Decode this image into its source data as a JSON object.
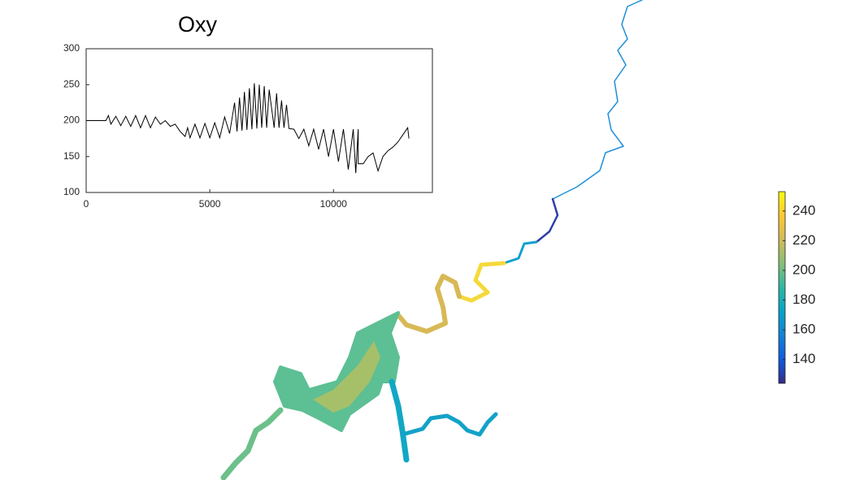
{
  "chart_data": [
    {
      "type": "line",
      "title": "Oxy",
      "x": [
        0,
        800,
        900,
        1000,
        1200,
        1400,
        1600,
        1800,
        2000,
        2200,
        2400,
        2600,
        2800,
        3000,
        3200,
        3400,
        3600,
        3800,
        4000,
        4100,
        4200,
        4400,
        4600,
        4800,
        5000,
        5200,
        5400,
        5600,
        5800,
        6000,
        6100,
        6200,
        6300,
        6400,
        6500,
        6600,
        6700,
        6800,
        6900,
        7000,
        7100,
        7200,
        7300,
        7400,
        7600,
        7700,
        7800,
        7900,
        8000,
        8100,
        8200,
        8400,
        8600,
        8800,
        9000,
        9200,
        9400,
        9600,
        9800,
        10000,
        10200,
        10400,
        10600,
        10800,
        10900,
        11000,
        11000,
        11200,
        11400,
        11600,
        11800,
        12000,
        12200,
        12400,
        12600,
        12800,
        13000,
        13050
      ],
      "values": [
        200,
        200,
        207,
        195,
        206,
        193,
        206,
        192,
        207,
        190,
        207,
        190,
        205,
        195,
        200,
        192,
        195,
        185,
        178,
        190,
        176,
        195,
        176,
        196,
        176,
        197,
        176,
        205,
        182,
        225,
        185,
        232,
        186,
        240,
        187,
        245,
        188,
        252,
        189,
        250,
        190,
        248,
        190,
        243,
        190,
        238,
        190,
        228,
        190,
        222,
        189,
        188,
        175,
        188,
        165,
        188,
        160,
        188,
        150,
        188,
        143,
        188,
        132,
        188,
        127,
        188,
        140,
        140,
        150,
        155,
        130,
        150,
        158,
        163,
        170,
        180,
        190,
        175
      ],
      "color": "#000000",
      "xlim": [
        0,
        14000
      ],
      "ylim": [
        100,
        300
      ],
      "xticks": [
        0,
        5000,
        10000
      ],
      "yticks": [
        100,
        150,
        200,
        250,
        300
      ]
    },
    {
      "type": "colorbar",
      "clim": [
        124,
        253
      ],
      "ticks": [
        140,
        160,
        180,
        200,
        220,
        240
      ],
      "colors": [
        "#352a87",
        "#0f5cdd",
        "#1481d6",
        "#06a4ca",
        "#2eb7a4",
        "#87bf77",
        "#d1bb59",
        "#fec832",
        "#f9fb0e"
      ]
    }
  ]
}
